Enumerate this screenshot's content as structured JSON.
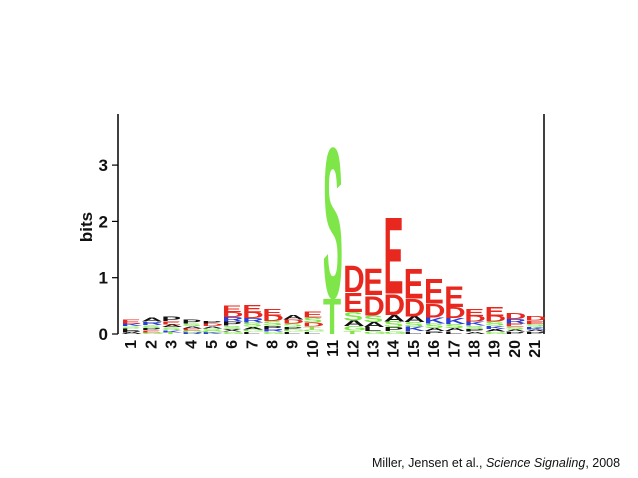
{
  "chart_data": {
    "type": "sequence_logo",
    "ylabel": "bits",
    "ylim": [
      0,
      3.9
    ],
    "yticks": [
      0,
      1,
      2,
      3
    ],
    "positions": [
      "1",
      "2",
      "3",
      "4",
      "5",
      "6",
      "7",
      "8",
      "9",
      "10",
      "11",
      "12",
      "13",
      "14",
      "15",
      "16",
      "17",
      "18",
      "19",
      "20",
      "21"
    ],
    "colors": {
      "acidic": "#e8281e",
      "polar": "#7fe64a",
      "basic": "#2a3fd6",
      "hydrophobic": "#111111"
    },
    "columns": [
      [
        {
          "letter": "E",
          "bits": 0.07,
          "color": "#e8281e"
        },
        {
          "letter": "K",
          "bits": 0.05,
          "color": "#2a3fd6"
        },
        {
          "letter": "L",
          "bits": 0.04,
          "color": "#111111"
        },
        {
          "letter": "S",
          "bits": 0.04,
          "color": "#7fe64a"
        },
        {
          "letter": "A",
          "bits": 0.03,
          "color": "#111111"
        },
        {
          "letter": "P",
          "bits": 0.03,
          "color": "#111111"
        }
      ],
      [
        {
          "letter": "A",
          "bits": 0.07,
          "color": "#111111"
        },
        {
          "letter": "R",
          "bits": 0.06,
          "color": "#2a3fd6"
        },
        {
          "letter": "S",
          "bits": 0.05,
          "color": "#7fe64a"
        },
        {
          "letter": "E",
          "bits": 0.04,
          "color": "#e8281e"
        },
        {
          "letter": "P",
          "bits": 0.04,
          "color": "#111111"
        },
        {
          "letter": "G",
          "bits": 0.03,
          "color": "#7fe64a"
        }
      ],
      [
        {
          "letter": "P",
          "bits": 0.08,
          "color": "#111111"
        },
        {
          "letter": "E",
          "bits": 0.06,
          "color": "#e8281e"
        },
        {
          "letter": "S",
          "bits": 0.05,
          "color": "#7fe64a"
        },
        {
          "letter": "A",
          "bits": 0.05,
          "color": "#111111"
        },
        {
          "letter": "K",
          "bits": 0.04,
          "color": "#2a3fd6"
        },
        {
          "letter": "T",
          "bits": 0.03,
          "color": "#7fe64a"
        }
      ],
      [
        {
          "letter": "P",
          "bits": 0.07,
          "color": "#111111"
        },
        {
          "letter": "S",
          "bits": 0.05,
          "color": "#7fe64a"
        },
        {
          "letter": "E",
          "bits": 0.04,
          "color": "#e8281e"
        },
        {
          "letter": "A",
          "bits": 0.04,
          "color": "#111111"
        },
        {
          "letter": "R",
          "bits": 0.03,
          "color": "#2a3fd6"
        },
        {
          "letter": "G",
          "bits": 0.03,
          "color": "#7fe64a"
        }
      ],
      [
        {
          "letter": "D",
          "bits": 0.05,
          "color": "#e8281e"
        },
        {
          "letter": "P",
          "bits": 0.05,
          "color": "#111111"
        },
        {
          "letter": "S",
          "bits": 0.04,
          "color": "#7fe64a"
        },
        {
          "letter": "A",
          "bits": 0.04,
          "color": "#111111"
        },
        {
          "letter": "K",
          "bits": 0.03,
          "color": "#2a3fd6"
        },
        {
          "letter": "G",
          "bits": 0.03,
          "color": "#7fe64a"
        }
      ],
      [
        {
          "letter": "E",
          "bits": 0.12,
          "color": "#e8281e"
        },
        {
          "letter": "D",
          "bits": 0.09,
          "color": "#e8281e"
        },
        {
          "letter": "R",
          "bits": 0.08,
          "color": "#2a3fd6"
        },
        {
          "letter": "P",
          "bits": 0.07,
          "color": "#111111"
        },
        {
          "letter": "S",
          "bits": 0.06,
          "color": "#7fe64a"
        },
        {
          "letter": "X",
          "bits": 0.05,
          "color": "#111111"
        },
        {
          "letter": "G",
          "bits": 0.04,
          "color": "#7fe64a"
        }
      ],
      [
        {
          "letter": "E",
          "bits": 0.14,
          "color": "#e8281e"
        },
        {
          "letter": "D",
          "bits": 0.1,
          "color": "#e8281e"
        },
        {
          "letter": "R",
          "bits": 0.08,
          "color": "#2a3fd6"
        },
        {
          "letter": "S",
          "bits": 0.07,
          "color": "#7fe64a"
        },
        {
          "letter": "A",
          "bits": 0.05,
          "color": "#111111"
        },
        {
          "letter": "L",
          "bits": 0.04,
          "color": "#111111"
        },
        {
          "letter": "G",
          "bits": 0.04,
          "color": "#7fe64a"
        }
      ],
      [
        {
          "letter": "E",
          "bits": 0.12,
          "color": "#e8281e"
        },
        {
          "letter": "D",
          "bits": 0.1,
          "color": "#e8281e"
        },
        {
          "letter": "S",
          "bits": 0.08,
          "color": "#7fe64a"
        },
        {
          "letter": "P",
          "bits": 0.06,
          "color": "#111111"
        },
        {
          "letter": "R",
          "bits": 0.05,
          "color": "#2a3fd6"
        },
        {
          "letter": "G",
          "bits": 0.04,
          "color": "#7fe64a"
        }
      ],
      [
        {
          "letter": "A",
          "bits": 0.08,
          "color": "#111111"
        },
        {
          "letter": "D",
          "bits": 0.07,
          "color": "#e8281e"
        },
        {
          "letter": "S",
          "bits": 0.06,
          "color": "#7fe64a"
        },
        {
          "letter": "P",
          "bits": 0.05,
          "color": "#111111"
        },
        {
          "letter": "L",
          "bits": 0.04,
          "color": "#111111"
        },
        {
          "letter": "G",
          "bits": 0.04,
          "color": "#7fe64a"
        }
      ],
      [
        {
          "letter": "E",
          "bits": 0.1,
          "color": "#e8281e"
        },
        {
          "letter": "S",
          "bits": 0.09,
          "color": "#7fe64a"
        },
        {
          "letter": "D",
          "bits": 0.07,
          "color": "#e8281e"
        },
        {
          "letter": "T",
          "bits": 0.05,
          "color": "#7fe64a"
        },
        {
          "letter": "L",
          "bits": 0.04,
          "color": "#111111"
        },
        {
          "letter": "G",
          "bits": 0.04,
          "color": "#7fe64a"
        }
      ],
      [
        {
          "letter": "S",
          "bits": 2.75,
          "color": "#7fe64a"
        },
        {
          "letter": "T",
          "bits": 0.65,
          "color": "#7fe64a"
        }
      ],
      [
        {
          "letter": "D",
          "bits": 0.48,
          "color": "#e8281e"
        },
        {
          "letter": "E",
          "bits": 0.36,
          "color": "#e8281e"
        },
        {
          "letter": "S",
          "bits": 0.15,
          "color": "#7fe64a"
        },
        {
          "letter": "A",
          "bits": 0.1,
          "color": "#111111"
        },
        {
          "letter": "G",
          "bits": 0.08,
          "color": "#7fe64a"
        },
        {
          "letter": "T",
          "bits": 0.06,
          "color": "#7fe64a"
        }
      ],
      [
        {
          "letter": "E",
          "bits": 0.48,
          "color": "#e8281e"
        },
        {
          "letter": "D",
          "bits": 0.36,
          "color": "#e8281e"
        },
        {
          "letter": "S",
          "bits": 0.12,
          "color": "#7fe64a"
        },
        {
          "letter": "A",
          "bits": 0.09,
          "color": "#111111"
        },
        {
          "letter": "L",
          "bits": 0.07,
          "color": "#111111"
        },
        {
          "letter": "G",
          "bits": 0.05,
          "color": "#7fe64a"
        }
      ],
      [
        {
          "letter": "E",
          "bits": 1.4,
          "color": "#e8281e"
        },
        {
          "letter": "D",
          "bits": 0.38,
          "color": "#e8281e"
        },
        {
          "letter": "A",
          "bits": 0.12,
          "color": "#111111"
        },
        {
          "letter": "S",
          "bits": 0.1,
          "color": "#7fe64a"
        },
        {
          "letter": "P",
          "bits": 0.07,
          "color": "#111111"
        },
        {
          "letter": "G",
          "bits": 0.05,
          "color": "#7fe64a"
        }
      ],
      [
        {
          "letter": "E",
          "bits": 0.55,
          "color": "#e8281e"
        },
        {
          "letter": "D",
          "bits": 0.32,
          "color": "#e8281e"
        },
        {
          "letter": "A",
          "bits": 0.1,
          "color": "#111111"
        },
        {
          "letter": "K",
          "bits": 0.08,
          "color": "#2a3fd6"
        },
        {
          "letter": "S",
          "bits": 0.08,
          "color": "#7fe64a"
        },
        {
          "letter": "L",
          "bits": 0.05,
          "color": "#111111"
        }
      ],
      [
        {
          "letter": "E",
          "bits": 0.45,
          "color": "#e8281e"
        },
        {
          "letter": "D",
          "bits": 0.25,
          "color": "#e8281e"
        },
        {
          "letter": "K",
          "bits": 0.1,
          "color": "#2a3fd6"
        },
        {
          "letter": "S",
          "bits": 0.08,
          "color": "#7fe64a"
        },
        {
          "letter": "A",
          "bits": 0.06,
          "color": "#111111"
        },
        {
          "letter": "P",
          "bits": 0.05,
          "color": "#111111"
        }
      ],
      [
        {
          "letter": "E",
          "bits": 0.38,
          "color": "#e8281e"
        },
        {
          "letter": "D",
          "bits": 0.2,
          "color": "#e8281e"
        },
        {
          "letter": "K",
          "bits": 0.1,
          "color": "#2a3fd6"
        },
        {
          "letter": "S",
          "bits": 0.07,
          "color": "#7fe64a"
        },
        {
          "letter": "A",
          "bits": 0.06,
          "color": "#111111"
        },
        {
          "letter": "L",
          "bits": 0.05,
          "color": "#111111"
        }
      ],
      [
        {
          "letter": "E",
          "bits": 0.13,
          "color": "#e8281e"
        },
        {
          "letter": "D",
          "bits": 0.1,
          "color": "#e8281e"
        },
        {
          "letter": "K",
          "bits": 0.07,
          "color": "#2a3fd6"
        },
        {
          "letter": "S",
          "bits": 0.06,
          "color": "#7fe64a"
        },
        {
          "letter": "P",
          "bits": 0.05,
          "color": "#111111"
        },
        {
          "letter": "A",
          "bits": 0.04,
          "color": "#111111"
        }
      ],
      [
        {
          "letter": "E",
          "bits": 0.16,
          "color": "#e8281e"
        },
        {
          "letter": "D",
          "bits": 0.1,
          "color": "#e8281e"
        },
        {
          "letter": "S",
          "bits": 0.07,
          "color": "#7fe64a"
        },
        {
          "letter": "K",
          "bits": 0.06,
          "color": "#2a3fd6"
        },
        {
          "letter": "A",
          "bits": 0.05,
          "color": "#111111"
        },
        {
          "letter": "G",
          "bits": 0.04,
          "color": "#7fe64a"
        }
      ],
      [
        {
          "letter": "D",
          "bits": 0.1,
          "color": "#e8281e"
        },
        {
          "letter": "R",
          "bits": 0.08,
          "color": "#2a3fd6"
        },
        {
          "letter": "E",
          "bits": 0.06,
          "color": "#e8281e"
        },
        {
          "letter": "S",
          "bits": 0.05,
          "color": "#7fe64a"
        },
        {
          "letter": "P",
          "bits": 0.04,
          "color": "#111111"
        },
        {
          "letter": "A",
          "bits": 0.04,
          "color": "#111111"
        }
      ],
      [
        {
          "letter": "D",
          "bits": 0.08,
          "color": "#e8281e"
        },
        {
          "letter": "E",
          "bits": 0.06,
          "color": "#e8281e"
        },
        {
          "letter": "K",
          "bits": 0.05,
          "color": "#2a3fd6"
        },
        {
          "letter": "S",
          "bits": 0.05,
          "color": "#7fe64a"
        },
        {
          "letter": "P",
          "bits": 0.04,
          "color": "#111111"
        },
        {
          "letter": "A",
          "bits": 0.04,
          "color": "#111111"
        }
      ]
    ]
  },
  "caption": {
    "authors": "Miller, Jensen et al.,",
    "journal": "Science Signaling",
    "year": ", 2008"
  }
}
